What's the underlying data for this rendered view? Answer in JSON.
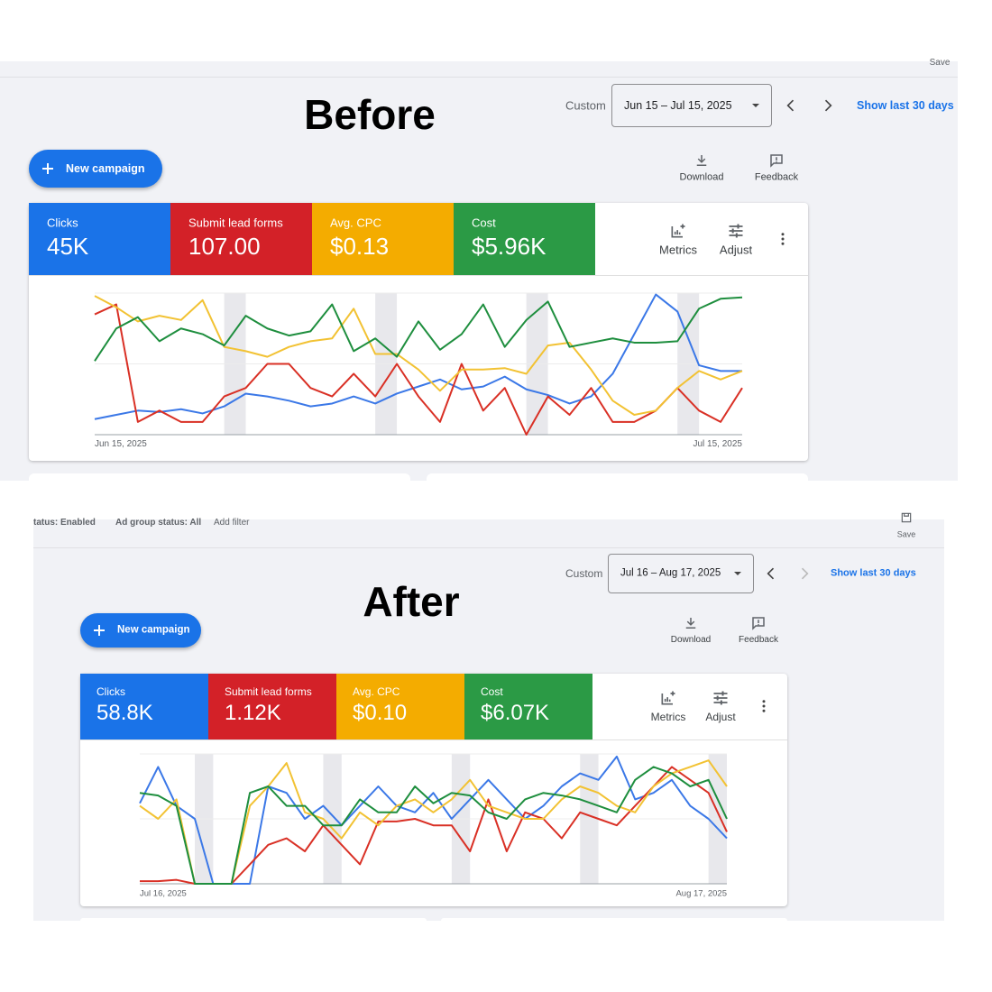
{
  "before": {
    "heading": "Before",
    "save": "Save",
    "date_label": "Custom",
    "date_range": "Jun 15 – Jul 15, 2025",
    "show_last": "Show last 30 days",
    "new_campaign": "New campaign",
    "download": "Download",
    "feedback": "Feedback",
    "metric_tiles": [
      {
        "label": "Clicks",
        "value": "45K",
        "color": "#1a73e8"
      },
      {
        "label": "Submit lead forms",
        "value": "107.00",
        "color": "#d32128"
      },
      {
        "label": "Avg. CPC",
        "value": "$0.13",
        "color": "#f4ac00"
      },
      {
        "label": "Cost",
        "value": "$5.96K",
        "color": "#2b9a45"
      }
    ],
    "metrics_button": "Metrics",
    "adjust_button": "Adjust",
    "chart": {
      "type": "line",
      "x_start": "Jun 15, 2025",
      "x_end": "Jul 15, 2025",
      "ylim": [
        0,
        100
      ],
      "series": [
        {
          "color": "#3b78e7",
          "values": [
            11,
            14,
            17,
            16,
            18,
            15,
            20,
            29,
            27,
            24,
            20,
            22,
            27,
            22,
            29,
            34,
            39,
            32,
            34,
            41,
            32,
            28,
            22,
            27,
            43,
            71,
            99,
            87,
            49,
            45,
            45
          ]
        },
        {
          "color": "#d93025",
          "values": [
            85,
            92,
            9,
            17,
            9,
            9,
            27,
            33,
            50,
            50,
            33,
            27,
            43,
            27,
            50,
            27,
            9,
            50,
            17,
            33,
            0,
            27,
            14,
            33,
            9,
            9,
            17,
            33,
            17,
            9,
            33
          ]
        },
        {
          "color": "#f2c233",
          "values": [
            98,
            90,
            80,
            84,
            81,
            95,
            62,
            59,
            55,
            62,
            66,
            68,
            89,
            57,
            57,
            46,
            31,
            46,
            46,
            47,
            43,
            63,
            65,
            46,
            24,
            14,
            17,
            33,
            45,
            39,
            45
          ]
        },
        {
          "color": "#1e8e3e",
          "values": [
            52,
            75,
            83,
            66,
            75,
            71,
            63,
            84,
            75,
            70,
            73,
            92,
            59,
            68,
            55,
            80,
            60,
            71,
            92,
            62,
            81,
            94,
            62,
            65,
            68,
            65,
            65,
            66,
            89,
            96,
            97
          ]
        }
      ]
    }
  },
  "after": {
    "filters": [
      "tatus: Enabled",
      "Ad group status: All",
      "Add filter"
    ],
    "heading": "After",
    "save": "Save",
    "date_label": "Custom",
    "date_range": "Jul 16 – Aug 17, 2025",
    "show_last": "Show last 30 days",
    "new_campaign": "New campaign",
    "download": "Download",
    "feedback": "Feedback",
    "metric_tiles": [
      {
        "label": "Clicks",
        "value": "58.8K",
        "color": "#1a73e8"
      },
      {
        "label": "Submit lead forms",
        "value": "1.12K",
        "color": "#d32128"
      },
      {
        "label": "Avg. CPC",
        "value": "$0.10",
        "color": "#f4ac00"
      },
      {
        "label": "Cost",
        "value": "$6.07K",
        "color": "#2b9a45"
      }
    ],
    "metrics_button": "Metrics",
    "adjust_button": "Adjust",
    "chart": {
      "type": "line",
      "x_start": "Jul 16, 2025",
      "x_end": "Aug 17, 2025",
      "ylim": [
        0,
        100
      ],
      "series": [
        {
          "color": "#3b78e7",
          "values": [
            62,
            90,
            60,
            50,
            0,
            0,
            0,
            75,
            70,
            50,
            60,
            45,
            60,
            75,
            60,
            55,
            70,
            50,
            65,
            80,
            65,
            50,
            60,
            75,
            85,
            80,
            98,
            65,
            70,
            80,
            60,
            50,
            35
          ]
        },
        {
          "color": "#d93025",
          "values": [
            2,
            2,
            3,
            0,
            0,
            0,
            15,
            30,
            35,
            25,
            45,
            30,
            15,
            48,
            48,
            50,
            45,
            45,
            25,
            65,
            25,
            55,
            50,
            35,
            55,
            50,
            45,
            60,
            75,
            90,
            80,
            70,
            40
          ]
        },
        {
          "color": "#f2c233",
          "values": [
            60,
            50,
            65,
            0,
            0,
            0,
            60,
            75,
            93,
            55,
            50,
            35,
            55,
            45,
            60,
            65,
            55,
            65,
            80,
            60,
            55,
            50,
            50,
            65,
            75,
            70,
            60,
            55,
            75,
            85,
            90,
            95,
            75
          ]
        },
        {
          "color": "#1e8e3e",
          "values": [
            70,
            68,
            60,
            0,
            0,
            0,
            70,
            75,
            60,
            60,
            45,
            45,
            65,
            55,
            55,
            75,
            62,
            70,
            68,
            55,
            50,
            65,
            70,
            68,
            65,
            60,
            55,
            80,
            90,
            85,
            75,
            80,
            50
          ]
        }
      ]
    }
  }
}
